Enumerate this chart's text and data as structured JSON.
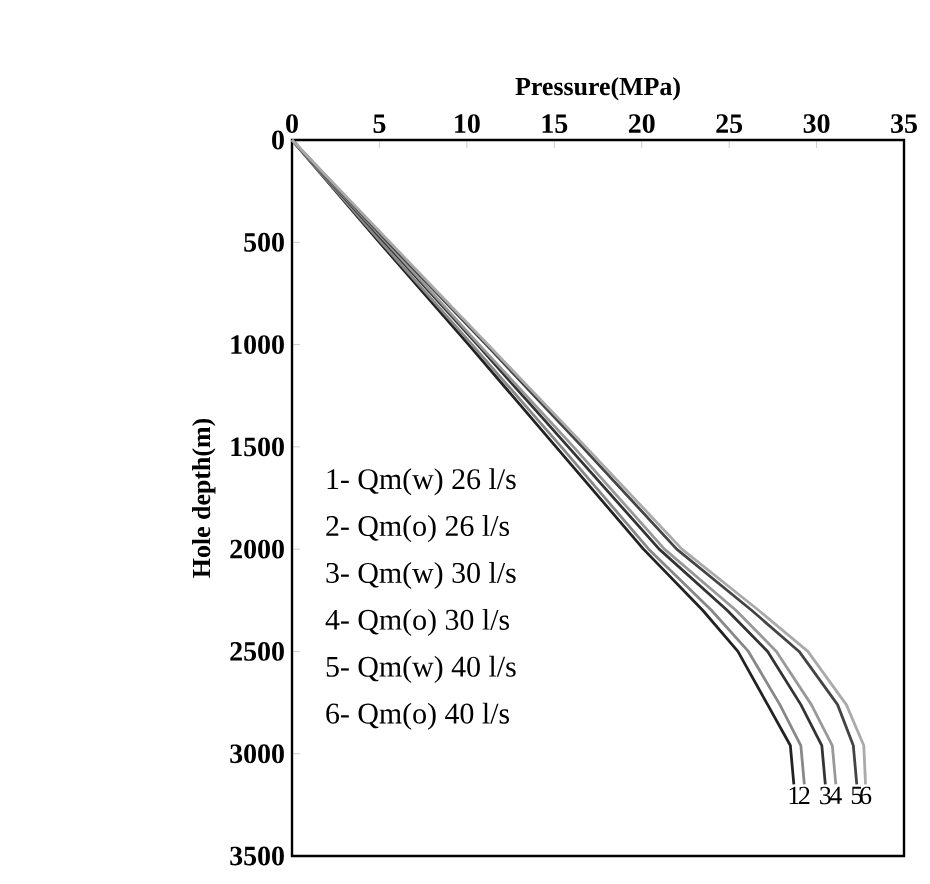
{
  "chart_data": {
    "type": "line",
    "xlabel": "Pressure(MPa)",
    "ylabel": "Hole depth(m)",
    "xlim": [
      0,
      35
    ],
    "xticks": [
      0,
      5,
      10,
      15,
      20,
      25,
      30,
      35
    ],
    "ylim": [
      3500,
      0
    ],
    "yticks": [
      0,
      500,
      1000,
      1500,
      2000,
      2500,
      3000,
      3500
    ],
    "legend": false,
    "grid": false,
    "marker": "none",
    "line_style": "solid",
    "series": [
      {
        "name": "1",
        "color": "#222222",
        "x": [
          0,
          5.0,
          10.1,
          15.1,
          20.1,
          23.5,
          25.5,
          27.2,
          28.5,
          28.7
        ],
        "values": [
          0,
          500,
          1000,
          1500,
          2000,
          2300,
          2500,
          2760,
          2960,
          3150
        ]
      },
      {
        "name": "2",
        "color": "#888888",
        "x": [
          0,
          5.1,
          10.3,
          15.4,
          20.4,
          24.0,
          26.1,
          27.9,
          29.1,
          29.3
        ],
        "values": [
          0,
          500,
          1000,
          1500,
          2000,
          2300,
          2500,
          2760,
          2960,
          3150
        ]
      },
      {
        "name": "3",
        "color": "#333333",
        "x": [
          0,
          5.3,
          10.6,
          15.8,
          21.0,
          24.9,
          27.2,
          29.1,
          30.3,
          30.5
        ],
        "values": [
          0,
          500,
          1000,
          1500,
          2000,
          2300,
          2500,
          2760,
          2960,
          3150
        ]
      },
      {
        "name": "4",
        "color": "#999999",
        "x": [
          0,
          5.4,
          10.7,
          16.1,
          21.3,
          25.4,
          27.7,
          29.7,
          30.9,
          31.1
        ],
        "values": [
          0,
          500,
          1000,
          1500,
          2000,
          2300,
          2500,
          2760,
          2960,
          3150
        ]
      },
      {
        "name": "5",
        "color": "#444444",
        "x": [
          0,
          5.5,
          11.1,
          16.6,
          22.0,
          26.3,
          29.0,
          31.2,
          32.1,
          32.3
        ],
        "values": [
          0,
          500,
          1000,
          1500,
          2000,
          2300,
          2500,
          2760,
          2960,
          3150
        ]
      },
      {
        "name": "6",
        "color": "#aaaaaa",
        "x": [
          0,
          5.6,
          11.2,
          16.8,
          22.3,
          26.7,
          29.5,
          31.7,
          32.7,
          32.8
        ],
        "values": [
          0,
          500,
          1000,
          1500,
          2000,
          2300,
          2500,
          2760,
          2960,
          3150
        ]
      }
    ],
    "annotations": [
      "1- Qm(w) 26 l/s",
      "2- Qm(o) 26 l/s",
      "3- Qm(w) 30 l/s",
      "4- Qm(o) 30 l/s",
      "5- Qm(w) 40 l/s",
      "6- Qm(o) 40 l/s"
    ]
  }
}
